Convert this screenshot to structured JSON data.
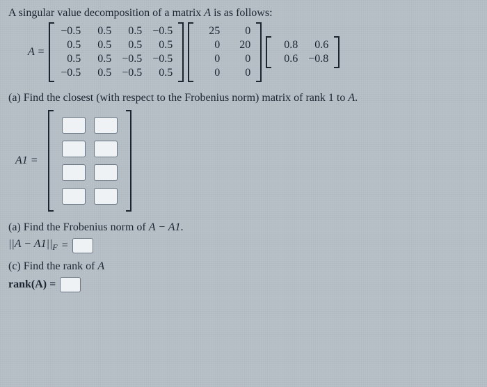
{
  "intro": "A singular value decomposition of a matrix",
  "intro_var": "A",
  "intro_tail": "is as follows:",
  "A_label": "A =",
  "U": [
    [
      "−0.5",
      "0.5",
      "0.5",
      "−0.5"
    ],
    [
      "0.5",
      "0.5",
      "0.5",
      "0.5"
    ],
    [
      "0.5",
      "0.5",
      "−0.5",
      "−0.5"
    ],
    [
      "−0.5",
      "0.5",
      "−0.5",
      "0.5"
    ]
  ],
  "S": [
    [
      "25",
      "0"
    ],
    [
      "0",
      "20"
    ],
    [
      "0",
      "0"
    ],
    [
      "0",
      "0"
    ]
  ],
  "V": [
    [
      "0.8",
      "0.6"
    ],
    [
      "0.6",
      "−0.8"
    ]
  ],
  "qa_label": "(a) Find the closest (with respect to the Frobenius norm) matrix of rank 1 to",
  "qa_var": "A",
  "A1_label": "A1 =",
  "qb_label": "(a) Find the Frobenius norm of",
  "qb_expr": "A − A1",
  "norm_lhs": "||A − A1||",
  "norm_sub": "F",
  "eq": "=",
  "qc_label": "(c) Find the rank of",
  "qc_var": "A",
  "rank_lhs": "rank(A) =",
  "period": "."
}
